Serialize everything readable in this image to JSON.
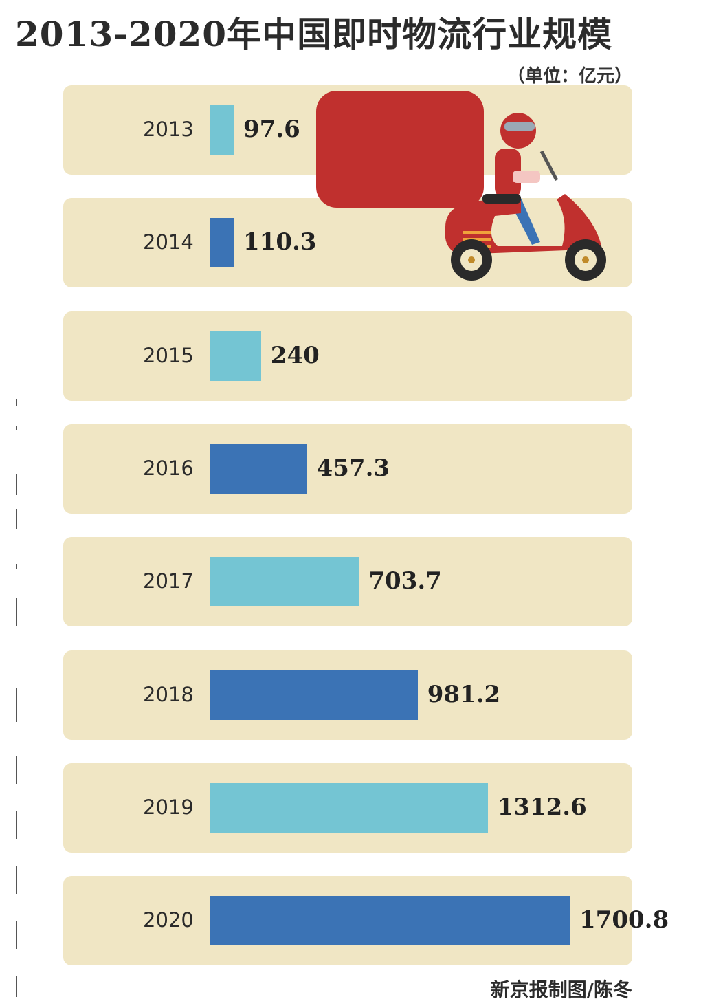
{
  "title": "2013-2020年中国即时物流行业规模",
  "unit": "（单位：亿元）",
  "credit": "新京报制图/陈冬",
  "colors": {
    "light": "#74c5d3",
    "dark": "#3b73b5",
    "row": "#f0e6c4",
    "scooter": "#c0302e"
  },
  "illustration": {
    "icon": "delivery-scooter-icon"
  },
  "chart_data": {
    "type": "bar",
    "orientation": "horizontal",
    "categories": [
      "2013",
      "2014",
      "2015",
      "2016",
      "2017",
      "2018",
      "2019",
      "2020"
    ],
    "values": [
      97.6,
      110.3,
      240,
      457.3,
      703.7,
      981.2,
      1312.6,
      1700.8
    ],
    "value_labels": [
      "97.6",
      "110.3",
      "240",
      "457.3",
      "703.7",
      "981.2",
      "1312.6",
      "1700.8"
    ],
    "title": "2013-2020年中国即时物流行业规模",
    "unit": "（单位：亿元）",
    "xlim": [
      0,
      1700.8
    ]
  }
}
